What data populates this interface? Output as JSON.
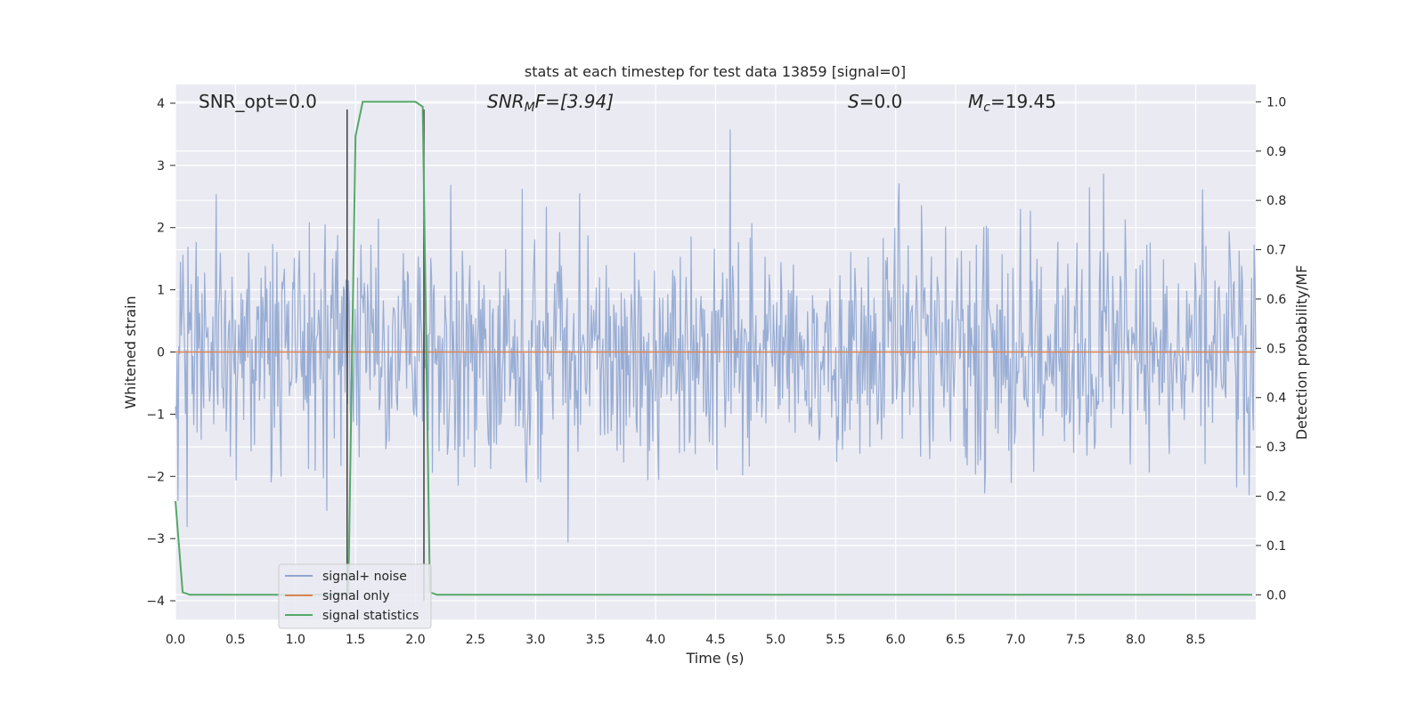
{
  "chart_data": {
    "type": "line",
    "title": "stats at each timestep for test data 13859 [signal=0]",
    "xlabel": "Time (s)",
    "ylabel": "Whitened strain",
    "ylabel_right": "Detection probability/MF",
    "xlim": [
      0.0,
      9.0
    ],
    "ylim": [
      -4.3,
      4.3
    ],
    "ylim_right": [
      -0.05,
      1.035
    ],
    "x_ticks": [
      0.0,
      0.5,
      1.0,
      1.5,
      2.0,
      2.5,
      3.0,
      3.5,
      4.0,
      4.5,
      5.0,
      5.5,
      6.0,
      6.5,
      7.0,
      7.5,
      8.0,
      8.5
    ],
    "x_tick_labels": [
      "0.0",
      "0.5",
      "1.0",
      "1.5",
      "2.0",
      "2.5",
      "3.0",
      "3.5",
      "4.0",
      "4.5",
      "5.0",
      "5.5",
      "6.0",
      "6.5",
      "7.0",
      "7.5",
      "8.0",
      "8.5"
    ],
    "y_ticks": [
      -4,
      -3,
      -2,
      -1,
      0,
      1,
      2,
      3,
      4
    ],
    "y_tick_labels": [
      "−4",
      "−3",
      "−2",
      "−1",
      "0",
      "1",
      "2",
      "3",
      "4"
    ],
    "y_ticks_right": [
      0.0,
      0.1,
      0.2,
      0.3,
      0.4,
      0.5,
      0.6,
      0.7,
      0.8,
      0.9,
      1.0
    ],
    "y_tick_labels_right": [
      "0.0",
      "0.1",
      "0.2",
      "0.3",
      "0.4",
      "0.5",
      "0.6",
      "0.7",
      "0.8",
      "0.9",
      "1.0"
    ],
    "grid": true,
    "legend_position": "lower-left",
    "annotations": {
      "snr_opt": "SNR_opt=0.0",
      "snr_mf_main": "SNR",
      "snr_mf_sub": "M",
      "snr_mf_rest": "F=[3.94]",
      "s_main": "S",
      "s_rest": "=0.0",
      "mc_main": "M",
      "mc_sub": "c",
      "mc_rest": "=19.45"
    },
    "series": [
      {
        "name": "signal+ noise",
        "color": "#8fa6d0",
        "axis": "left",
        "description_values": "dense whitened noise, amplitude mostly within ±2.5, peaks near 3.9 and −4.0",
        "seed": 13859,
        "n_samples": 1300
      },
      {
        "name": "signal only",
        "color": "#dd8452",
        "axis": "left",
        "x": [
          0.0,
          9.0
        ],
        "y": [
          0.0,
          0.0
        ]
      },
      {
        "name": "signal statistics",
        "color": "#55a868",
        "axis": "right",
        "x": [
          0.0,
          0.06,
          0.12,
          1.44,
          1.5,
          1.56,
          2.0,
          2.06,
          2.12,
          2.18,
          8.97
        ],
        "y": [
          0.19,
          0.005,
          0.0,
          0.0,
          0.93,
          1.0,
          1.0,
          0.99,
          0.005,
          0.0,
          0.0
        ]
      }
    ],
    "markers": {
      "color": "#404040",
      "x": [
        1.43,
        2.07
      ],
      "y_top": 3.9,
      "y_bottom": -4.0
    },
    "colors": {
      "plot_background": "#eaeaf2",
      "grid": "#ffffff",
      "text": "#262626"
    }
  }
}
